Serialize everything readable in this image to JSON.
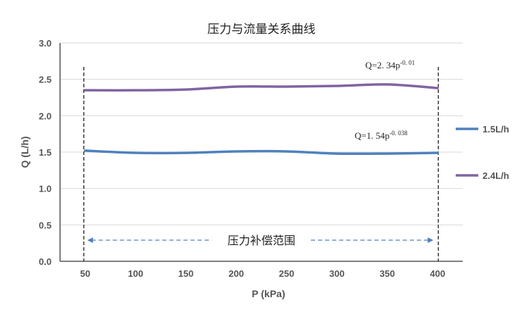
{
  "chart_data": {
    "type": "line",
    "title": "压力与流量关系曲线",
    "xlabel": "P (kPa)",
    "ylabel": "Q (L/h)",
    "xlim": [
      25,
      425
    ],
    "ylim": [
      0,
      3.0
    ],
    "x_ticks": [
      "50",
      "100",
      "150",
      "200",
      "250",
      "300",
      "350",
      "400"
    ],
    "y_ticks": [
      "0.0",
      "0.5",
      "1.0",
      "1.5",
      "2.0",
      "2.5",
      "3.0"
    ],
    "grid": "horizontal",
    "legend_position": "right",
    "x": [
      50,
      100,
      150,
      200,
      250,
      300,
      350,
      400
    ],
    "series": [
      {
        "name": "1.5L/h",
        "color": "#4f81bd",
        "values": [
          1.52,
          1.49,
          1.49,
          1.51,
          1.51,
          1.48,
          1.48,
          1.49
        ]
      },
      {
        "name": "2.4L/h",
        "color": "#8064a2",
        "values": [
          2.35,
          2.35,
          2.36,
          2.4,
          2.4,
          2.41,
          2.43,
          2.38
        ]
      }
    ],
    "annotations": {
      "fit_2_4": {
        "base": "Q=2. 34p",
        "exp": "-0. 01"
      },
      "fit_1_5": {
        "base": "Q=1. 54p",
        "exp": "-0. 038"
      },
      "range_label": "压力补偿范围",
      "range": [
        50,
        400
      ]
    }
  }
}
